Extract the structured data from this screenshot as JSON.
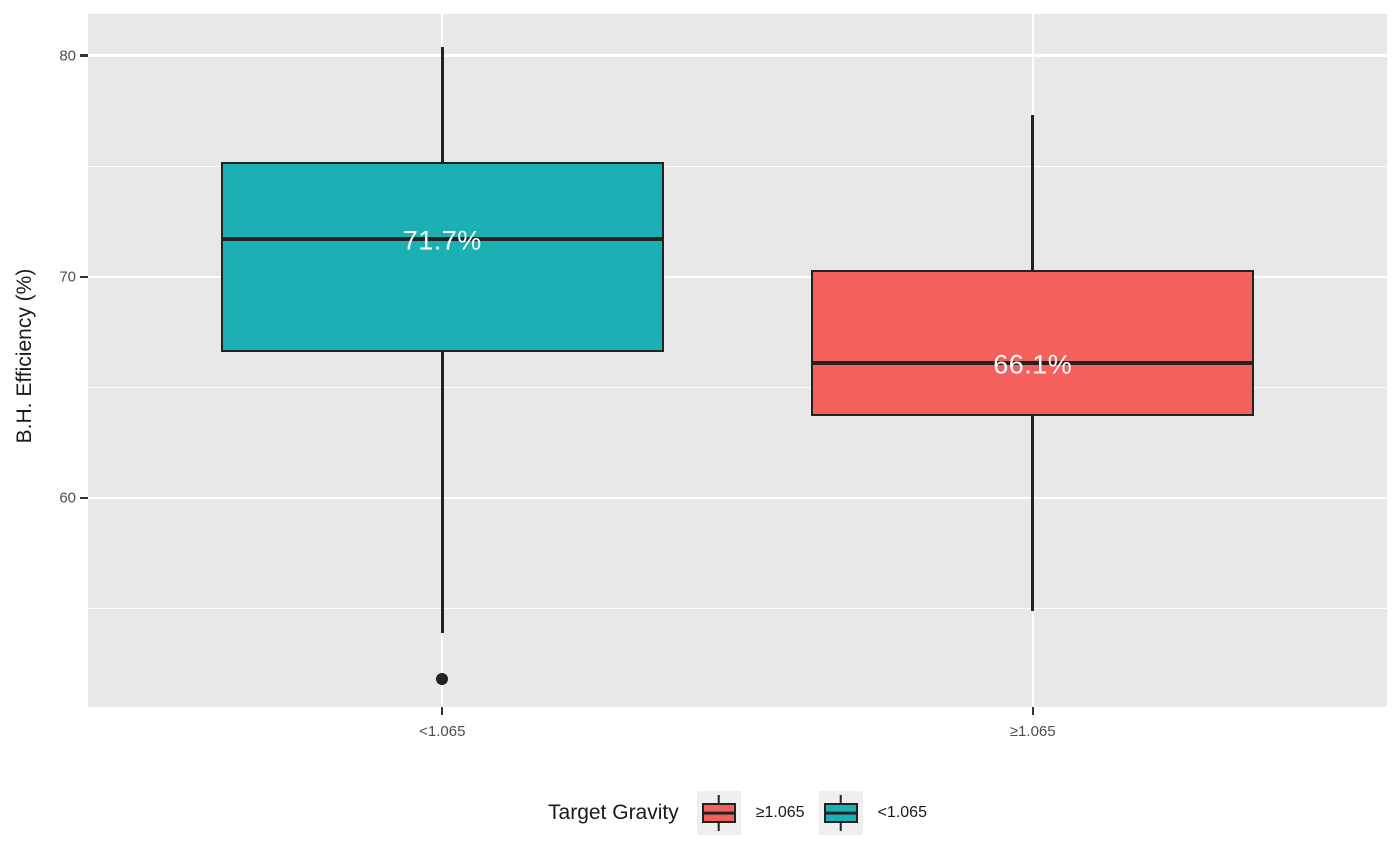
{
  "chart_data": {
    "type": "boxplot",
    "title": "",
    "xlabel": "",
    "ylabel": "B.H. Efficiency (%)",
    "categories": [
      "<1.065",
      "≥1.065"
    ],
    "y_axis": {
      "ticks": [
        80,
        70,
        60
      ],
      "minor_ticks": [
        75,
        65,
        55
      ],
      "range": [
        50.55,
        81.88
      ],
      "grid": true
    },
    "series": [
      {
        "category": "<1.065",
        "fill": "#1BB1B4",
        "whisker_high": 80.4,
        "q3": 75.2,
        "median": 71.7,
        "q1": 66.6,
        "whisker_low": 53.9,
        "outliers": [
          51.8
        ],
        "median_label": "71.7%"
      },
      {
        "category": "≥1.065",
        "fill": "#F4605C",
        "whisker_high": 77.3,
        "q3": 70.3,
        "median": 66.1,
        "q1": 63.7,
        "whisker_low": 54.9,
        "outliers": [],
        "median_label": "66.1%"
      }
    ],
    "legend": {
      "title": "Target Gravity",
      "position": "bottom",
      "entries": [
        {
          "label": "≥1.065",
          "color": "#F4605C"
        },
        {
          "label": "<1.065",
          "color": "#1BB1B4"
        }
      ]
    },
    "colors": {
      "panel_bg": "#E8E8E8",
      "grid": "#FFFFFF",
      "stroke": "#222222",
      "tick_mark": "#333333",
      "tick_label": "#4D4D4D",
      "axis_title": "#1A1A1A",
      "median_label": "#FFFFFF",
      "legend_key_bg": "#EFEFEF",
      "background": "#FFFFFF"
    }
  }
}
